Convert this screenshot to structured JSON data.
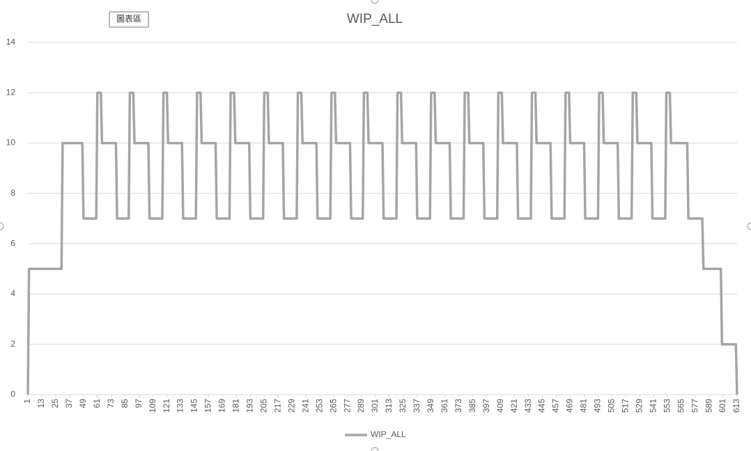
{
  "chart_data": {
    "type": "line",
    "title": "WIP_ALL",
    "tooltip": "圖表區",
    "x": [
      1,
      2,
      30,
      31,
      48,
      49,
      60,
      61,
      64,
      65,
      77,
      78,
      88,
      89,
      92,
      93,
      105,
      106,
      117,
      118,
      121,
      122,
      134,
      135,
      146,
      147,
      150,
      151,
      163,
      164,
      175,
      176,
      179,
      180,
      192,
      193,
      204,
      205,
      208,
      209,
      221,
      222,
      233,
      234,
      237,
      238,
      250,
      251,
      262,
      263,
      266,
      267,
      279,
      280,
      290,
      291,
      294,
      295,
      307,
      308,
      319,
      320,
      323,
      324,
      336,
      337,
      348,
      349,
      352,
      353,
      365,
      366,
      377,
      378,
      381,
      382,
      394,
      395,
      406,
      407,
      410,
      411,
      423,
      424,
      435,
      436,
      439,
      440,
      452,
      453,
      464,
      465,
      468,
      469,
      481,
      482,
      493,
      494,
      497,
      498,
      510,
      511,
      522,
      523,
      526,
      527,
      539,
      540,
      551,
      552,
      555,
      556,
      570,
      571,
      583,
      584,
      599,
      600,
      612,
      613
    ],
    "series": [
      {
        "name": "WIP_ALL",
        "color": "#a5a5a5",
        "values": [
          0,
          5,
          5,
          10,
          10,
          7,
          7,
          12,
          12,
          10,
          10,
          7,
          7,
          12,
          12,
          10,
          10,
          7,
          7,
          12,
          12,
          10,
          10,
          7,
          7,
          12,
          12,
          10,
          10,
          7,
          7,
          12,
          12,
          10,
          10,
          7,
          7,
          12,
          12,
          10,
          10,
          7,
          7,
          12,
          12,
          10,
          10,
          7,
          7,
          12,
          12,
          10,
          10,
          7,
          7,
          12,
          12,
          10,
          10,
          7,
          7,
          12,
          12,
          10,
          10,
          7,
          7,
          12,
          12,
          10,
          10,
          7,
          7,
          12,
          12,
          10,
          10,
          7,
          7,
          12,
          12,
          10,
          10,
          7,
          7,
          12,
          12,
          10,
          10,
          7,
          7,
          12,
          12,
          10,
          10,
          7,
          7,
          12,
          12,
          10,
          10,
          7,
          7,
          12,
          12,
          10,
          10,
          7,
          7,
          12,
          12,
          10,
          10,
          7,
          7,
          5,
          5,
          2,
          2,
          0
        ]
      }
    ],
    "xlim": [
      1,
      613
    ],
    "xticks": [
      1,
      13,
      25,
      37,
      49,
      61,
      73,
      85,
      97,
      109,
      121,
      133,
      145,
      157,
      169,
      181,
      193,
      205,
      217,
      229,
      241,
      253,
      265,
      277,
      289,
      301,
      313,
      325,
      337,
      349,
      361,
      373,
      385,
      397,
      409,
      421,
      433,
      445,
      457,
      469,
      481,
      493,
      505,
      517,
      529,
      541,
      553,
      565,
      577,
      589,
      601,
      613
    ],
    "ylim": [
      0,
      14
    ],
    "yticks": [
      0,
      2,
      4,
      6,
      8,
      10,
      12,
      14
    ],
    "grid": true,
    "legend": "bottom"
  }
}
